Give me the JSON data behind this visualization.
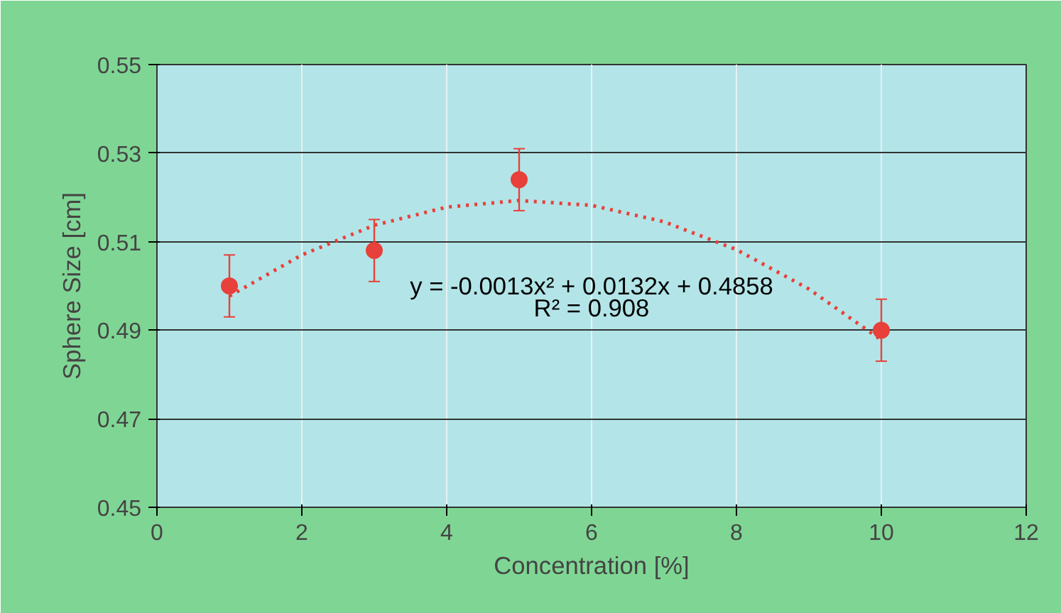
{
  "chart_data": {
    "type": "scatter",
    "xlabel": "Concentration [%]",
    "ylabel": "Sphere Size [cm]",
    "x": [
      1,
      3,
      5,
      10
    ],
    "series": [
      {
        "color": "#e8403a",
        "values": [
          0.5,
          0.508,
          0.524,
          0.49
        ],
        "errors": [
          0.007,
          0.007,
          0.007,
          0.007
        ],
        "marker": "circle"
      },
      {
        "type": "line",
        "color": "#e8403a",
        "line_style": "dotted",
        "marker": "none",
        "x": [
          1,
          2,
          3,
          4,
          5,
          6,
          7,
          8,
          9,
          10
        ],
        "values": [
          0.4977,
          0.507,
          0.5137,
          0.5178,
          0.5193,
          0.5182,
          0.5145,
          0.5082,
          0.4993,
          0.4878
        ]
      }
    ],
    "annotations": [
      "y = -0.0013x² + 0.0132x + 0.4858",
      "R² = 0.908"
    ],
    "xlim": [
      0,
      12
    ],
    "xticks": [
      0,
      2,
      4,
      6,
      8,
      10,
      12
    ],
    "ylim": [
      0.45,
      0.55
    ],
    "yticks": [
      0.45,
      0.47,
      0.49,
      0.51,
      0.53,
      0.55
    ],
    "grid": true
  }
}
